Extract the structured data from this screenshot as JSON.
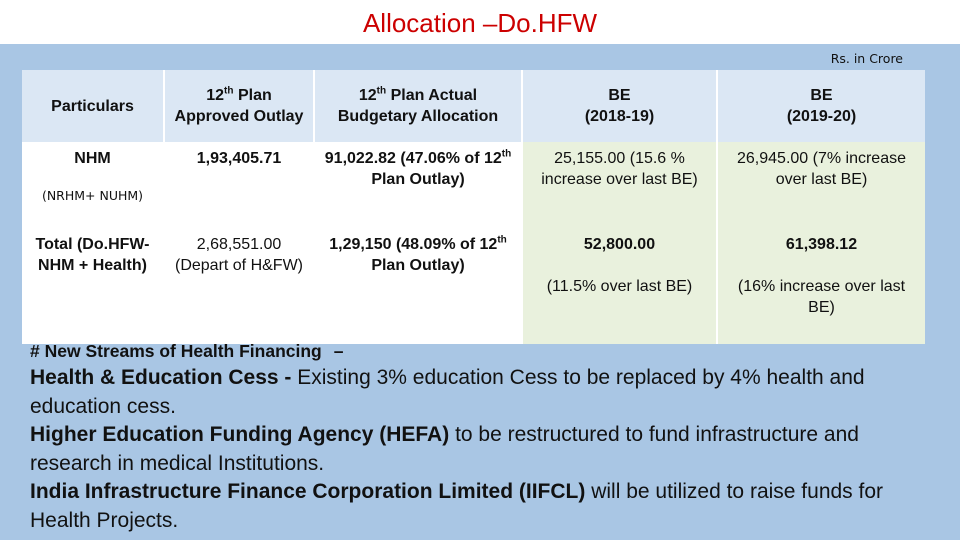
{
  "title": "Allocation –Do.HFW",
  "units": "Rs. in Crore",
  "colors": {
    "title": "#cc0000",
    "frame": "#a9c6e4",
    "header_bg": "#dbe7f4",
    "be_bg": "#e9f1dd"
  },
  "table": {
    "headers": {
      "particulars": "Particulars",
      "approved_a": "12",
      "approved_sup": "th",
      "approved_b": " Plan Approved Outlay",
      "actual_a": "12",
      "actual_sup": "th",
      "actual_b": " Plan Actual Budgetary Allocation",
      "be1_a": "BE",
      "be1_b": "(2018-19)",
      "be2_a": "BE",
      "be2_b": "(2019-20)"
    },
    "rows": {
      "nhm": {
        "particular": "NHM",
        "particular_note": "(NRHM+ NUHM)",
        "approved": "1,93,405.71",
        "actual_a": "91,022.82 (47.06% of 12",
        "actual_sup": "th",
        "actual_b": " Plan Outlay)",
        "be1": "25,155.00 (15.6 % increase over last BE)",
        "be2": "26,945.00 (7% increase over last BE)"
      },
      "total": {
        "particular": "Total (Do.HFW- NHM + Health)",
        "approved": "2,68,551.00 (Depart of H&FW)",
        "actual_a": "1,29,150 (48.09% of 12",
        "actual_sup": "th",
        "actual_b": " Plan Outlay)",
        "be1_a": "52,800.00",
        "be1_b": "(11.5% over last BE)",
        "be2_a": "61,398.12",
        "be2_b": "(16% increase over last BE)"
      }
    }
  },
  "notes": {
    "heading": "# New Streams of Health Financing",
    "heading_dash": "–",
    "items": [
      {
        "bold": "Health & Education Cess -",
        "text": " Existing 3% education Cess to be replaced by 4% health and education cess."
      },
      {
        "bold": "Higher Education Funding Agency (HEFA)",
        "text": " to be restructured to fund infrastructure and research in medical Institutions."
      },
      {
        "bold": "India Infrastructure Finance Corporation Limited (IIFCL)",
        "text": " will be utilized to raise funds for Health Projects."
      }
    ]
  }
}
